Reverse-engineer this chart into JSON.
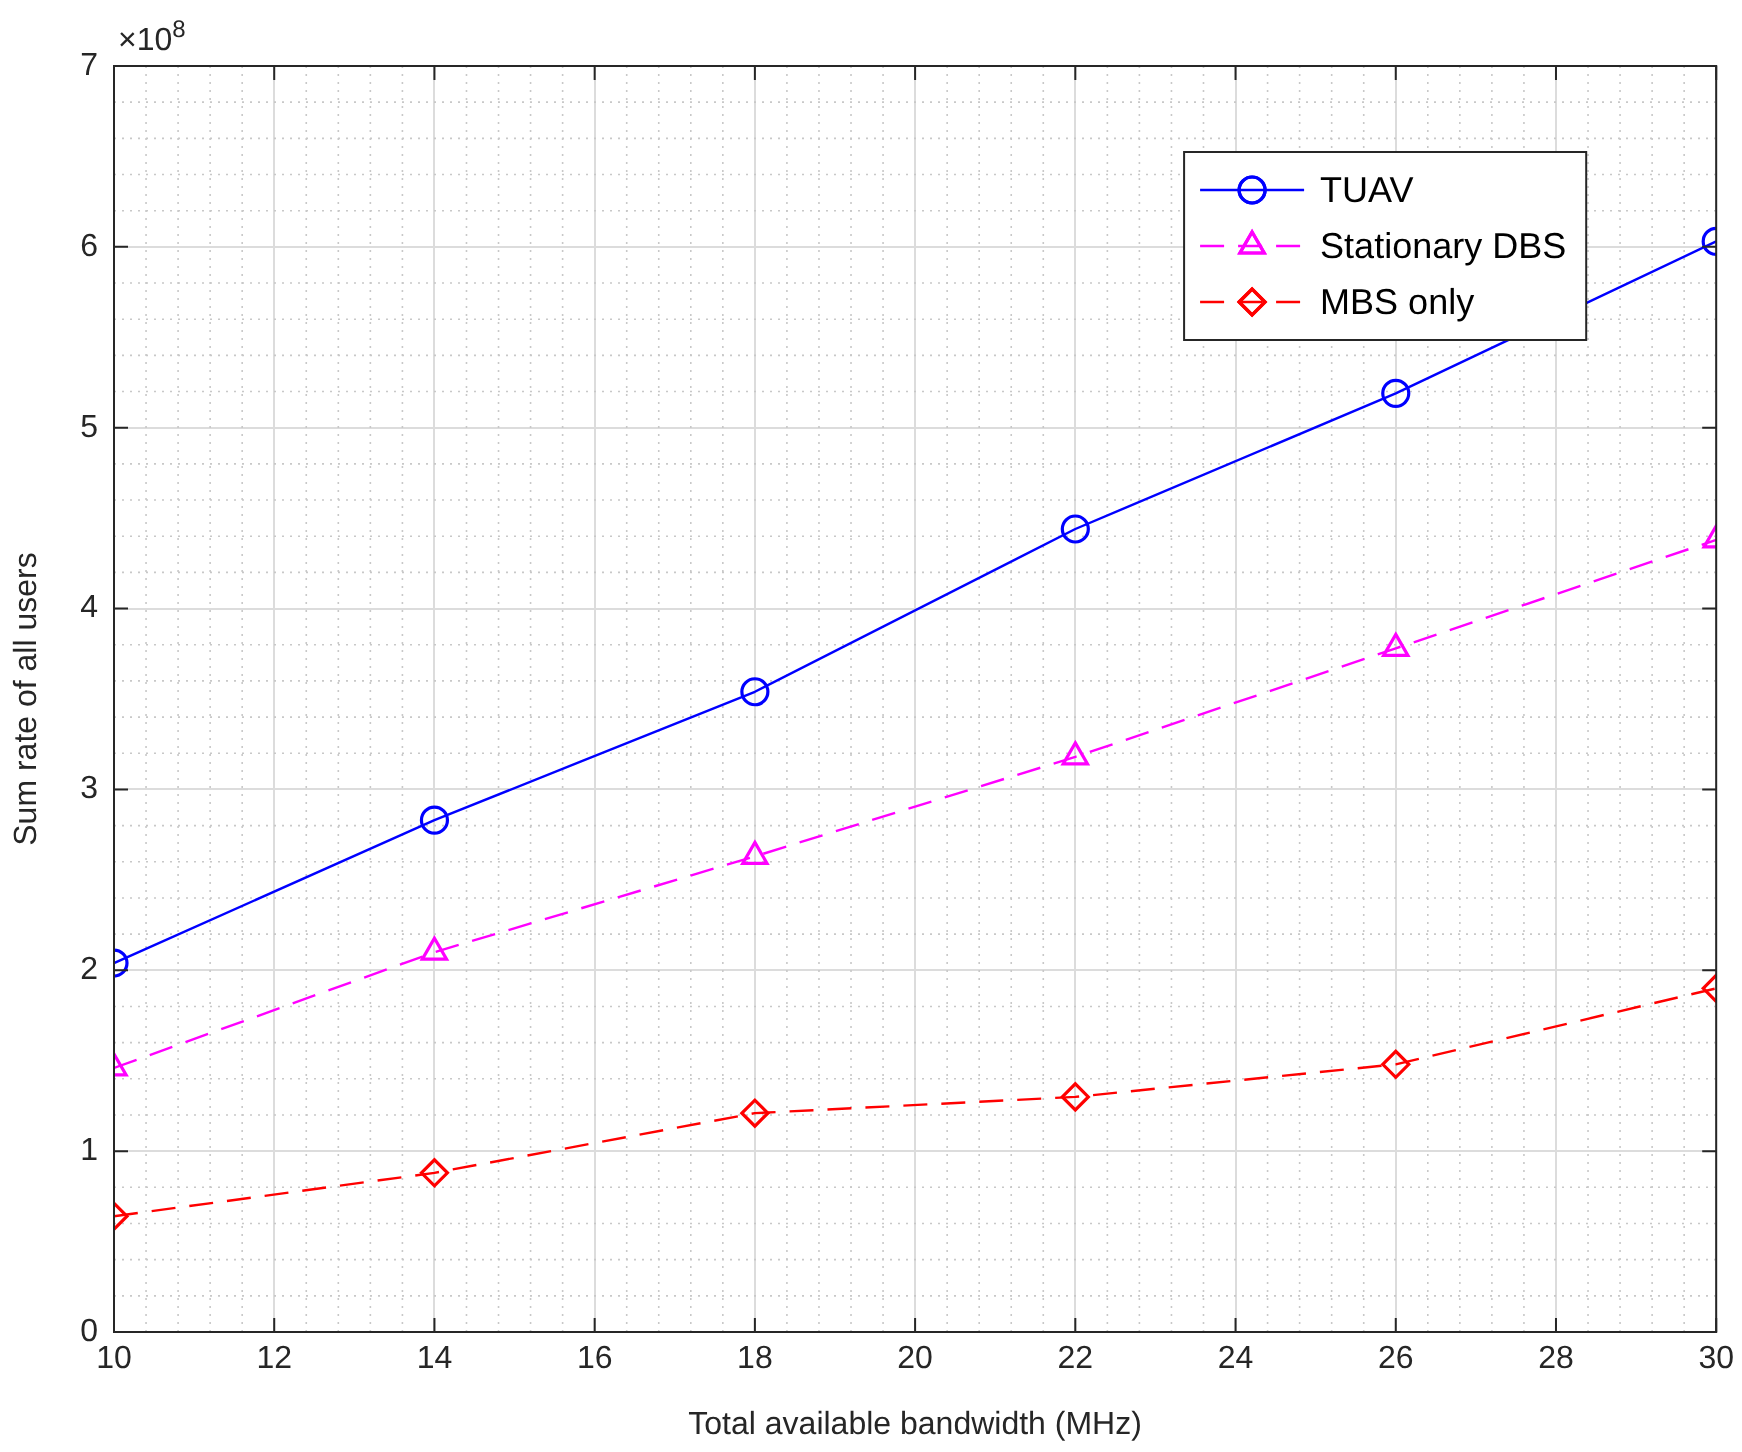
{
  "chart_data": {
    "type": "line",
    "xlabel": "Total available bandwidth (MHz)",
    "ylabel": "Sum rate of all users",
    "annotations": [
      "×10$^{8}$"
    ],
    "x": [
      10,
      14,
      18,
      22,
      26,
      30
    ],
    "series": [
      {
        "name": "TUAV",
        "color": "#0000ff",
        "marker": "circle",
        "line_style": "solid",
        "values": [
          2.04,
          2.83,
          3.54,
          4.44,
          5.19,
          6.03
        ]
      },
      {
        "name": "Stationary DBS",
        "color": "#ff00ff",
        "marker": "triangle",
        "line_style": "dashed",
        "values": [
          1.46,
          2.1,
          2.63,
          3.18,
          3.78,
          4.38
        ]
      },
      {
        "name": "MBS only",
        "color": "#ff0000",
        "marker": "diamond",
        "line_style": "dashed",
        "values": [
          0.64,
          0.88,
          1.21,
          1.3,
          1.48,
          1.9
        ]
      }
    ],
    "xlim": [
      10,
      30
    ],
    "xticks": [
      10,
      12,
      14,
      16,
      18,
      20,
      22,
      24,
      26,
      28,
      30
    ],
    "ylim": [
      0,
      7
    ],
    "yticks": [
      0,
      1,
      2,
      3,
      4,
      5,
      6,
      7
    ],
    "grid": true,
    "legend": "top right"
  }
}
